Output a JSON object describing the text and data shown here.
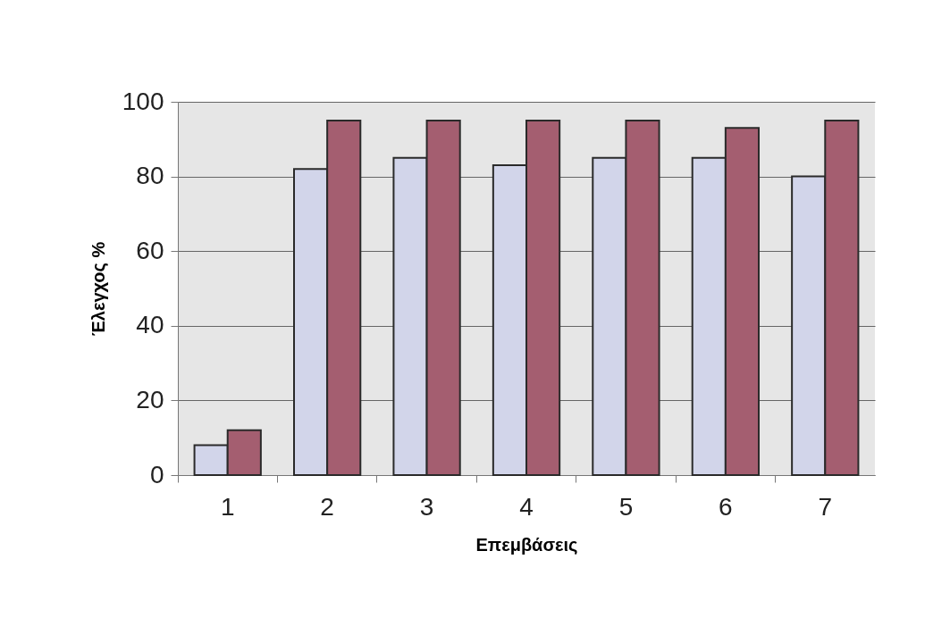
{
  "chart_data": {
    "type": "bar",
    "xlabel": "Επεμβάσεις",
    "ylabel": "Έλεγχος %",
    "categories": [
      "1",
      "2",
      "3",
      "4",
      "5",
      "6",
      "7"
    ],
    "series": [
      {
        "color": "#d2d5ea",
        "values": [
          8,
          82,
          85,
          83,
          85,
          85,
          80
        ]
      },
      {
        "color": "#a45e70",
        "values": [
          12,
          95,
          95,
          95,
          95,
          93,
          95
        ]
      }
    ],
    "ylim": [
      0,
      100
    ],
    "yticks": [
      0,
      20,
      40,
      60,
      80,
      100
    ],
    "grid": "y",
    "legend": false
  }
}
